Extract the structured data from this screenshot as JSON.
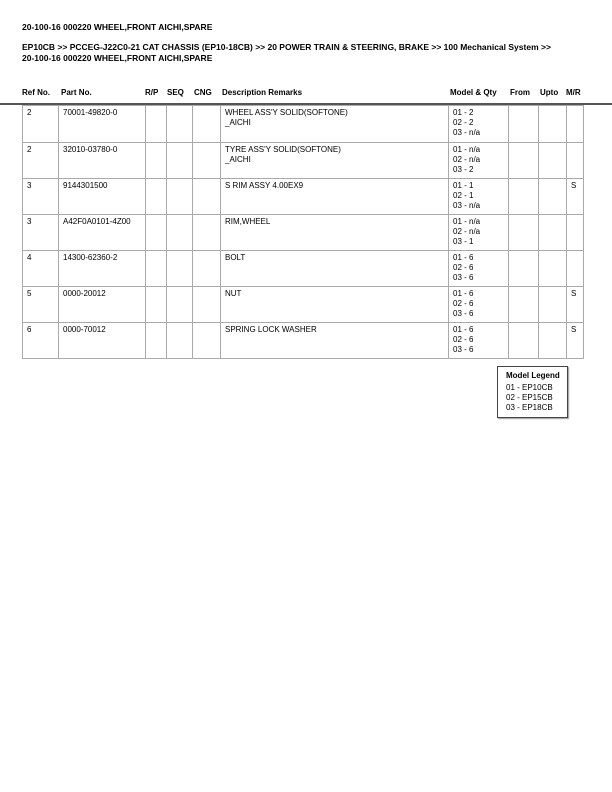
{
  "title": "20-100-16 000220 WHEEL,FRONT AICHI,SPARE",
  "breadcrumb_line1": "EP10CB >> PCCEG-J22C0-21 CAT CHASSIS (EP10-18CB) >> 20 POWER TRAIN & STEERING, BRAKE >> 100 Mechanical System >>",
  "breadcrumb_line2": "20-100-16 000220 WHEEL,FRONT AICHI,SPARE",
  "columns": [
    "Ref No.",
    "Part No.",
    "R/P",
    "SEQ",
    "CNG",
    "Description Remarks",
    "Model & Qty",
    "From",
    "Upto",
    "M/R"
  ],
  "rows": [
    {
      "ref": "2",
      "part": "70001-49820-0",
      "desc1": "WHEEL ASS'Y SOLID(SOFTONE)",
      "desc2": "_AICHI",
      "q1": "01 - 2",
      "q2": "02 - 2",
      "q3": "03 - n/a",
      "mr": ""
    },
    {
      "ref": "2",
      "part": "32010-03780-0",
      "desc1": "TYRE ASS'Y SOLID(SOFTONE)",
      "desc2": "_AICHI",
      "q1": "01 - n/a",
      "q2": "02 - n/a",
      "q3": "03 - 2",
      "mr": ""
    },
    {
      "ref": "3",
      "part": "9144301500",
      "desc1": "S RIM ASSY 4.00EX9",
      "desc2": "",
      "q1": "01 - 1",
      "q2": "02 - 1",
      "q3": "03 - n/a",
      "mr": "S"
    },
    {
      "ref": "3",
      "part": "A42F0A0101-4Z00",
      "desc1": "RIM,WHEEL",
      "desc2": "",
      "q1": "01 - n/a",
      "q2": "02 - n/a",
      "q3": "03 - 1",
      "mr": ""
    },
    {
      "ref": "4",
      "part": "14300-62360-2",
      "desc1": "BOLT",
      "desc2": "",
      "q1": "01 - 6",
      "q2": "02 - 6",
      "q3": "03 - 6",
      "mr": ""
    },
    {
      "ref": "5",
      "part": "0000-20012",
      "desc1": "NUT",
      "desc2": "",
      "q1": "01 - 6",
      "q2": "02 - 6",
      "q3": "03 - 6",
      "mr": "S"
    },
    {
      "ref": "6",
      "part": "0000-70012",
      "desc1": "SPRING LOCK WASHER",
      "desc2": "",
      "q1": "01 - 6",
      "q2": "02 - 6",
      "q3": "03 - 6",
      "mr": "S"
    }
  ],
  "legend": {
    "title": "Model Legend",
    "items": [
      "01 - EP10CB",
      "02 - EP15CB",
      "03 - EP18CB"
    ]
  }
}
